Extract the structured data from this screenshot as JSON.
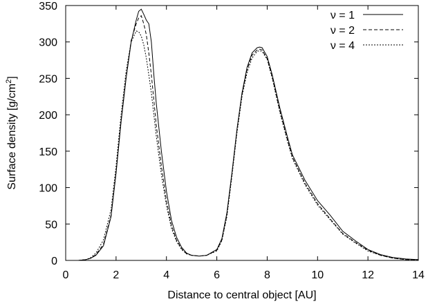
{
  "chart_data": {
    "type": "line",
    "title": "",
    "xlabel": "Distance to central object [AU]",
    "ylabel": "Surface density [g/cm",
    "ylabel_sup": "2",
    "ylabel_tail": "]",
    "xlim": [
      0,
      14
    ],
    "ylim": [
      0,
      350
    ],
    "xticks": [
      0,
      2,
      4,
      6,
      8,
      10,
      12,
      14
    ],
    "yticks": [
      0,
      50,
      100,
      150,
      200,
      250,
      300,
      350
    ],
    "legend_position": "top-right",
    "grid": false,
    "series": [
      {
        "name": "ν = 1",
        "dash": "solid",
        "x": [
          0,
          0.5,
          0.8,
          1.0,
          1.2,
          1.5,
          1.8,
          2.0,
          2.2,
          2.4,
          2.6,
          2.8,
          2.9,
          3.0,
          3.1,
          3.2,
          3.3,
          3.4,
          3.5,
          3.6,
          3.8,
          4.0,
          4.2,
          4.4,
          4.6,
          4.8,
          5.0,
          5.3,
          5.6,
          6.0,
          6.2,
          6.4,
          6.6,
          6.8,
          7.0,
          7.2,
          7.4,
          7.6,
          7.7,
          7.8,
          8.0,
          8.2,
          8.5,
          8.8,
          9.0,
          9.5,
          10.0,
          10.5,
          11.0,
          11.5,
          12.0,
          12.5,
          13.0,
          13.5,
          14.0
        ],
        "y": [
          0,
          0,
          1,
          3,
          7,
          20,
          60,
          120,
          190,
          250,
          300,
          330,
          342,
          345,
          338,
          330,
          325,
          300,
          255,
          215,
          150,
          95,
          55,
          32,
          18,
          10,
          7,
          6,
          7,
          15,
          30,
          65,
          120,
          180,
          230,
          265,
          285,
          292,
          293,
          292,
          280,
          255,
          210,
          170,
          145,
          110,
          82,
          62,
          40,
          27,
          15,
          8,
          4,
          2,
          1
        ]
      },
      {
        "name": "ν = 2",
        "dash": "5,3",
        "x": [
          0,
          0.5,
          0.8,
          1.0,
          1.2,
          1.5,
          1.8,
          2.0,
          2.2,
          2.4,
          2.6,
          2.8,
          2.9,
          3.0,
          3.1,
          3.2,
          3.3,
          3.4,
          3.5,
          3.6,
          3.8,
          4.0,
          4.2,
          4.4,
          4.6,
          4.8,
          5.0,
          5.3,
          5.6,
          6.0,
          6.2,
          6.4,
          6.6,
          6.8,
          7.0,
          7.2,
          7.4,
          7.6,
          7.7,
          7.8,
          8.0,
          8.2,
          8.5,
          8.8,
          9.0,
          9.5,
          10.0,
          10.5,
          11.0,
          11.5,
          12.0,
          12.5,
          13.0,
          13.5,
          14.0
        ],
        "y": [
          0,
          0,
          1,
          3,
          8,
          22,
          62,
          122,
          192,
          252,
          302,
          325,
          333,
          336,
          325,
          310,
          285,
          255,
          220,
          185,
          130,
          82,
          48,
          28,
          16,
          9,
          7,
          6,
          7,
          14,
          28,
          62,
          118,
          178,
          228,
          262,
          282,
          289,
          290,
          289,
          277,
          252,
          206,
          166,
          142,
          106,
          78,
          57,
          37,
          25,
          14,
          7,
          3,
          1,
          1
        ]
      },
      {
        "name": "ν = 4",
        "dash": "2,2",
        "x": [
          0,
          0.5,
          0.8,
          1.0,
          1.2,
          1.5,
          1.8,
          2.0,
          2.2,
          2.4,
          2.6,
          2.8,
          2.9,
          3.0,
          3.1,
          3.2,
          3.3,
          3.4,
          3.5,
          3.6,
          3.8,
          4.0,
          4.2,
          4.4,
          4.6,
          4.8,
          5.0,
          5.3,
          5.6,
          6.0,
          6.2,
          6.4,
          6.6,
          6.8,
          7.0,
          7.2,
          7.4,
          7.6,
          7.7,
          7.8,
          8.0,
          8.2,
          8.5,
          8.8,
          9.0,
          9.5,
          10.0,
          10.5,
          11.0,
          11.5,
          12.0,
          12.5,
          13.0,
          13.5,
          14.0
        ],
        "y": [
          0,
          0,
          1,
          4,
          10,
          28,
          70,
          130,
          200,
          260,
          300,
          315,
          314,
          308,
          296,
          278,
          255,
          230,
          200,
          170,
          118,
          75,
          44,
          26,
          15,
          9,
          7,
          6,
          7,
          13,
          27,
          60,
          115,
          175,
          225,
          258,
          278,
          287,
          288,
          287,
          276,
          250,
          204,
          164,
          140,
          104,
          76,
          56,
          36,
          24,
          13,
          7,
          3,
          1,
          1
        ]
      }
    ]
  }
}
